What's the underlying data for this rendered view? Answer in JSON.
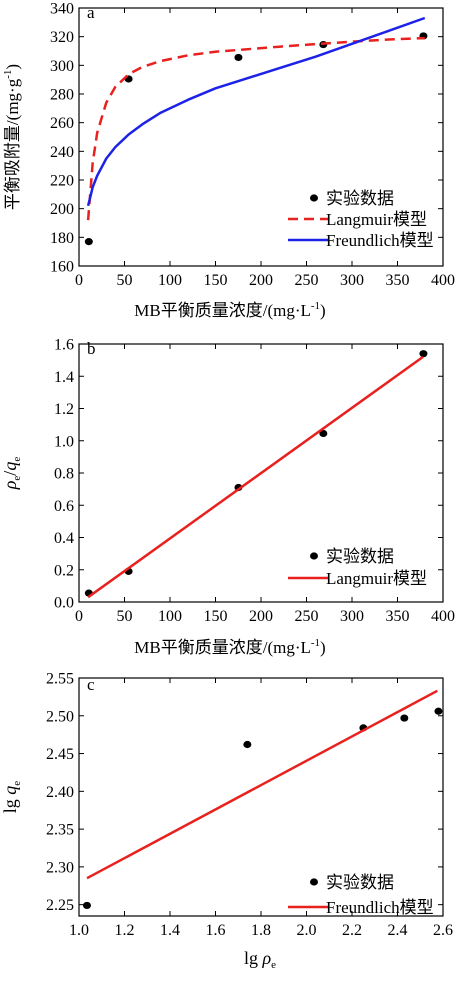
{
  "chart_data": [
    {
      "panel": "a",
      "type": "scatter",
      "xlabel": "MB平衡质量浓度/(mg·L",
      "xlabel_sup": "-1",
      "xlabel_tail": ")",
      "ylabel": "平衡吸附量/(mg·g",
      "ylabel_sup": "-1",
      "ylabel_tail": ")",
      "xlim": [
        0,
        400
      ],
      "ylim": [
        160,
        340
      ],
      "xticks": [
        0,
        50,
        100,
        150,
        200,
        250,
        300,
        350,
        400
      ],
      "yticks": [
        160,
        180,
        200,
        220,
        240,
        260,
        280,
        300,
        320,
        340
      ],
      "grid": false,
      "legend_position": "lower-right",
      "series": [
        {
          "name": "实验数据",
          "kind": "points",
          "color": "#000000",
          "x": [
            10.8,
            54.5,
            175.2,
            268.5,
            378.5
          ],
          "y": [
            177,
            290.5,
            305.5,
            314.5,
            320.5
          ]
        },
        {
          "name": "Langmuir模型",
          "kind": "dashed-line",
          "color": "#e8211f",
          "x": [
            10,
            15,
            20,
            30,
            40,
            55,
            70,
            90,
            120,
            150,
            180,
            220,
            260,
            300,
            340,
            380
          ],
          "y": [
            192,
            232,
            253,
            274,
            285,
            294,
            299,
            303,
            307,
            309.5,
            311,
            313,
            314.8,
            316.5,
            318,
            319
          ]
        },
        {
          "name": "Freundlich模型",
          "kind": "solid-line",
          "color": "#1c22e6",
          "x": [
            10,
            15,
            20,
            30,
            40,
            55,
            70,
            90,
            120,
            150,
            180,
            220,
            260,
            300,
            340,
            380
          ],
          "y": [
            202,
            215,
            223,
            235,
            243,
            252,
            259,
            267,
            276,
            284,
            290,
            298,
            306,
            315,
            324,
            333
          ]
        }
      ]
    },
    {
      "panel": "b",
      "type": "scatter",
      "xlabel": "MB平衡质量浓度/(mg·L",
      "xlabel_sup": "-1",
      "xlabel_tail": ")",
      "xlim": [
        0,
        400
      ],
      "ylim": [
        0,
        1.6
      ],
      "xticks": [
        0,
        50,
        100,
        150,
        200,
        250,
        300,
        350,
        400
      ],
      "yticks": [
        "0.0",
        "0.2",
        "0.4",
        "0.6",
        "0.8",
        "1.0",
        "1.2",
        "1.4",
        "1.6"
      ],
      "grid": false,
      "legend_position": "lower-right",
      "series": [
        {
          "name": "实验数据",
          "kind": "points",
          "color": "#000000",
          "x": [
            10.8,
            54.5,
            175.2,
            268.5,
            378.5
          ],
          "y": [
            0.055,
            0.19,
            0.71,
            1.045,
            1.54
          ]
        },
        {
          "name": "Langmuir模型",
          "kind": "solid-line",
          "color": "#e8211f",
          "x": [
            10,
            378
          ],
          "y": [
            0.03,
            1.52
          ]
        }
      ]
    },
    {
      "panel": "c",
      "type": "scatter",
      "xlim": [
        1.0,
        2.6
      ],
      "ylim": [
        2.235,
        2.55
      ],
      "xticks": [
        "1.0",
        "1.2",
        "1.4",
        "1.6",
        "1.8",
        "2.0",
        "2.2",
        "2.4",
        "2.6"
      ],
      "yticks": [
        "2.25",
        "2.30",
        "2.35",
        "2.40",
        "2.45",
        "2.50",
        "2.55"
      ],
      "grid": false,
      "legend_position": "lower-right",
      "series": [
        {
          "name": "实验数据",
          "kind": "points",
          "color": "#000000",
          "x": [
            1.035,
            1.74,
            2.25,
            2.43,
            2.58
          ],
          "y": [
            2.249,
            2.462,
            2.484,
            2.497,
            2.506
          ]
        },
        {
          "name": "Freundlich模型",
          "kind": "solid-line",
          "color": "#e8211f",
          "x": [
            1.035,
            2.575
          ],
          "y": [
            2.285,
            2.533
          ]
        }
      ]
    }
  ]
}
